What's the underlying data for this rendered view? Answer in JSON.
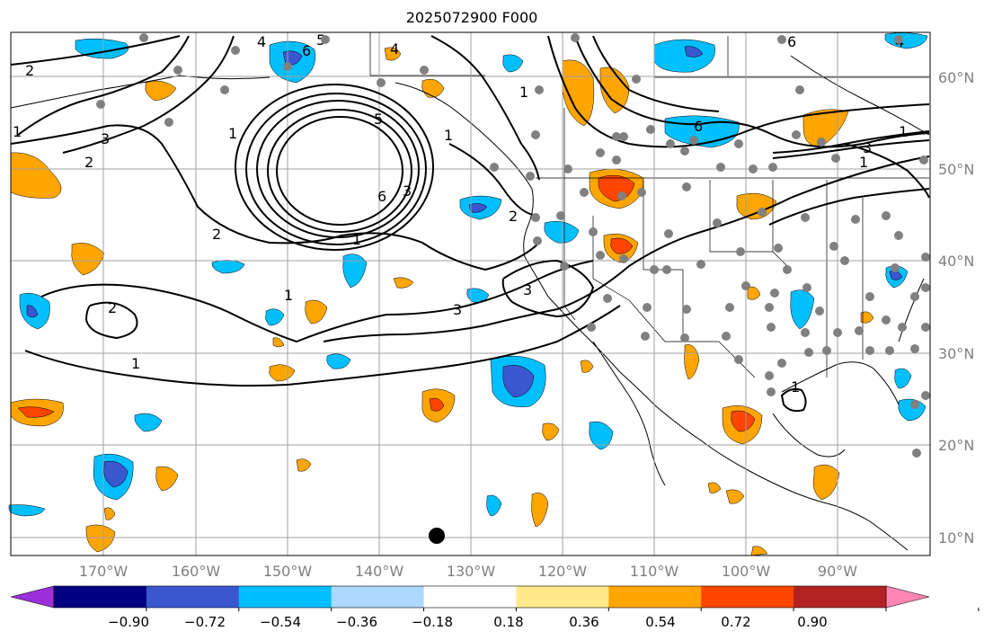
{
  "title": "2025072900 F000",
  "lat_labels": [
    "60°N",
    "50°N",
    "40°N",
    "30°N",
    "20°N",
    "10°N"
  ],
  "lon_labels": [
    "170°W",
    "160°W",
    "150°W",
    "140°W",
    "130°W",
    "120°W",
    "110°W",
    "100°W",
    "90°W"
  ],
  "colorbar": {
    "ticks": [
      "−0.90",
      "−0.72",
      "−0.54",
      "−0.36",
      "−0.18",
      "0.18",
      "0.36",
      "0.54",
      "0.72",
      "0.90"
    ],
    "colors": [
      "#9b30d9",
      "#000080",
      "#3a57d0",
      "#00bfff",
      "#add8ff",
      "#ffffff",
      "#ffe98a",
      "#ffa500",
      "#ff4500",
      "#b22222",
      "#ff86b3"
    ]
  },
  "contour_labels": [
    "2",
    "1",
    "3",
    "2",
    "2",
    "6",
    "5",
    "4",
    "3",
    "1",
    "5",
    "6",
    "4",
    "1",
    "6",
    "1",
    "3",
    "1",
    "2",
    "3",
    "3",
    "2",
    "1",
    "1",
    "1",
    "6",
    "1",
    "4",
    "1"
  ],
  "colors": {
    "contour": "#000000",
    "grid": "#a0a0a0",
    "station": "#808080",
    "tick_text": "#808080"
  }
}
